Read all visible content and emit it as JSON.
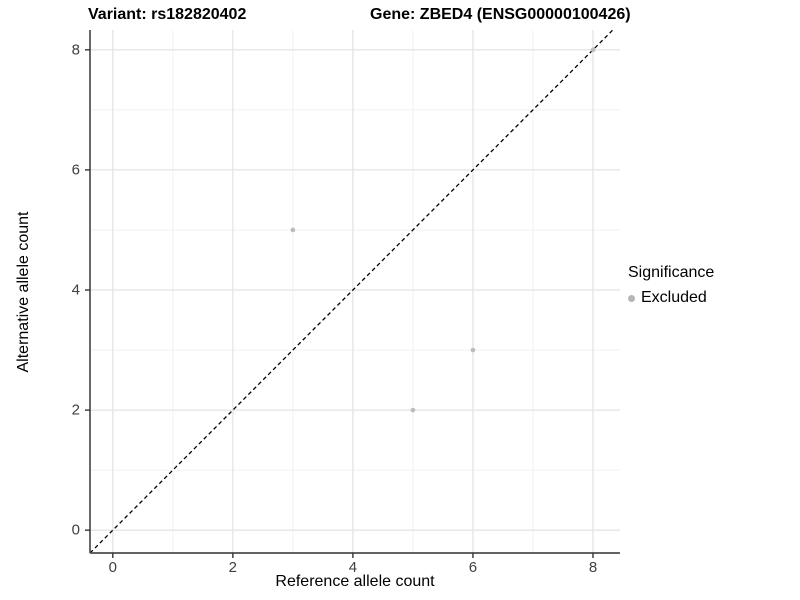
{
  "figure": {
    "title_left": "Variant: rs182820402",
    "title_right": "Gene: ZBED4 (ENSG00000100426)"
  },
  "chart_data": {
    "type": "scatter",
    "titles": {
      "left": "Variant: rs182820402",
      "right": "Gene: ZBED4 (ENSG00000100426)"
    },
    "xlabel": "Reference allele count",
    "ylabel": "Alternative allele count",
    "xlim": [
      -0.38,
      8.45
    ],
    "ylim": [
      -0.38,
      8.33
    ],
    "x_ticks": [
      0,
      2,
      4,
      6,
      8
    ],
    "y_ticks": [
      0,
      2,
      4,
      6,
      8
    ],
    "grid": {
      "major": true,
      "minor": true,
      "minor_positions": [
        1,
        3,
        5,
        7
      ]
    },
    "reference_line": {
      "type": "identity y=x",
      "style": "dashed",
      "color": "#000000"
    },
    "series": [
      {
        "name": "Excluded",
        "marker_color": "#bcbcbc",
        "points": [
          [
            3,
            5
          ],
          [
            5,
            2
          ],
          [
            6,
            3
          ],
          [
            8,
            8
          ]
        ]
      }
    ],
    "legend": {
      "title": "Significance",
      "position": "right",
      "items": [
        {
          "label": "Excluded",
          "marker_color": "#b5b5b5"
        }
      ]
    },
    "colors": {
      "axis_line": "#4d4d4d",
      "tick_mark": "#333333",
      "tick_label": "#404040",
      "grid_major": "#e4e4e4",
      "grid_minor": "#f1f1f1",
      "background": "#ffffff"
    }
  }
}
